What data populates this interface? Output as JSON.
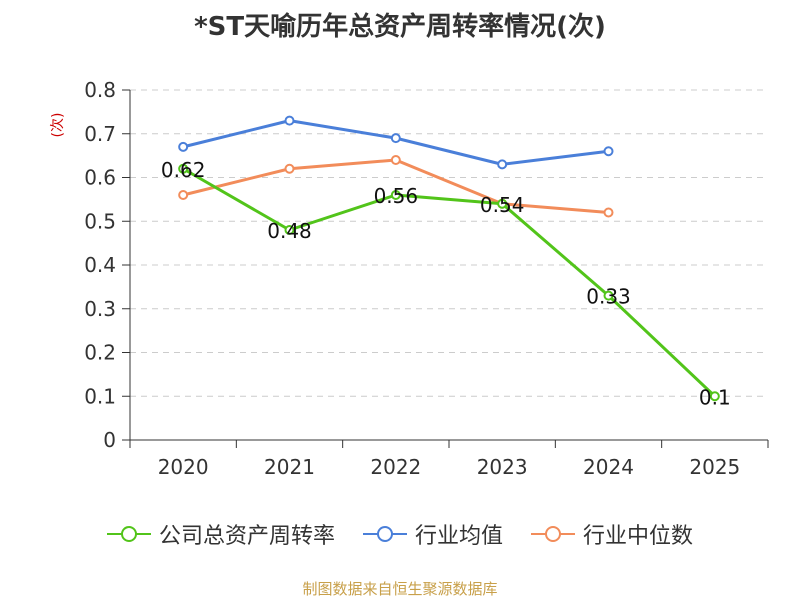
{
  "chart_data": {
    "type": "line",
    "title": "*ST天喻历年总资产周转率情况(次)",
    "ylabel": "(次)",
    "xlabel": "",
    "categories": [
      "2020",
      "2021",
      "2022",
      "2023",
      "2024",
      "2025"
    ],
    "ylim": [
      0,
      0.8
    ],
    "yticks": [
      "0",
      "0.1",
      "0.2",
      "0.3",
      "0.4",
      "0.5",
      "0.6",
      "0.7",
      "0.8"
    ],
    "series": [
      {
        "name": "公司总资产周转率",
        "color": "#52c41a",
        "values": [
          0.62,
          0.48,
          0.56,
          0.54,
          0.33,
          0.1
        ],
        "labels": [
          "0.62",
          "0.48",
          "0.56",
          "0.54",
          "0.33",
          "0.1"
        ]
      },
      {
        "name": "行业均值",
        "color": "#4a7fd9",
        "values": [
          0.67,
          0.73,
          0.69,
          0.63,
          0.66,
          null
        ]
      },
      {
        "name": "行业中位数",
        "color": "#f28c5a",
        "values": [
          0.56,
          0.62,
          0.64,
          0.54,
          0.52,
          null
        ]
      }
    ],
    "legend_position": "bottom",
    "grid": true
  },
  "source": "制图数据来自恒生聚源数据库"
}
